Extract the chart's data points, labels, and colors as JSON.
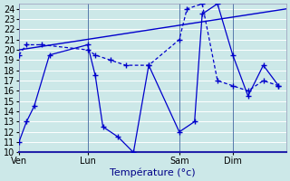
{
  "background_color": "#cce8e8",
  "grid_color": "#aadddd",
  "line_color": "#0000cc",
  "ylim": [
    10,
    24.5
  ],
  "yticks": [
    10,
    11,
    12,
    13,
    14,
    15,
    16,
    17,
    18,
    19,
    20,
    21,
    22,
    23,
    24
  ],
  "xlabel": "Température (°c)",
  "xlabel_fontsize": 8,
  "tick_fontsize": 7,
  "day_labels": [
    "Ven",
    "Lun",
    "Sam",
    "Dim"
  ],
  "day_positions": [
    0,
    9,
    21,
    28
  ],
  "xlim": [
    0,
    35
  ],
  "series1_x": [
    0,
    1,
    2,
    4,
    9,
    10,
    11,
    13,
    15,
    17,
    21,
    23,
    24,
    26,
    28,
    30,
    32,
    34
  ],
  "series1_y": [
    11.0,
    13.0,
    14.5,
    19.5,
    20.5,
    17.5,
    12.5,
    11.5,
    10.0,
    18.5,
    12.0,
    13.0,
    23.5,
    24.5,
    19.5,
    15.5,
    18.5,
    16.5
  ],
  "series2_x": [
    0,
    1,
    3,
    9,
    10,
    12,
    14,
    17,
    21,
    22,
    24,
    26,
    28,
    30,
    32,
    34
  ],
  "series2_y": [
    19.5,
    20.5,
    20.5,
    20.0,
    19.5,
    19.0,
    18.5,
    18.5,
    21.0,
    24.0,
    24.5,
    17.0,
    16.5,
    16.0,
    17.0,
    16.5
  ],
  "trend_x": [
    0,
    35
  ],
  "trend_y": [
    20.0,
    24.0
  ]
}
